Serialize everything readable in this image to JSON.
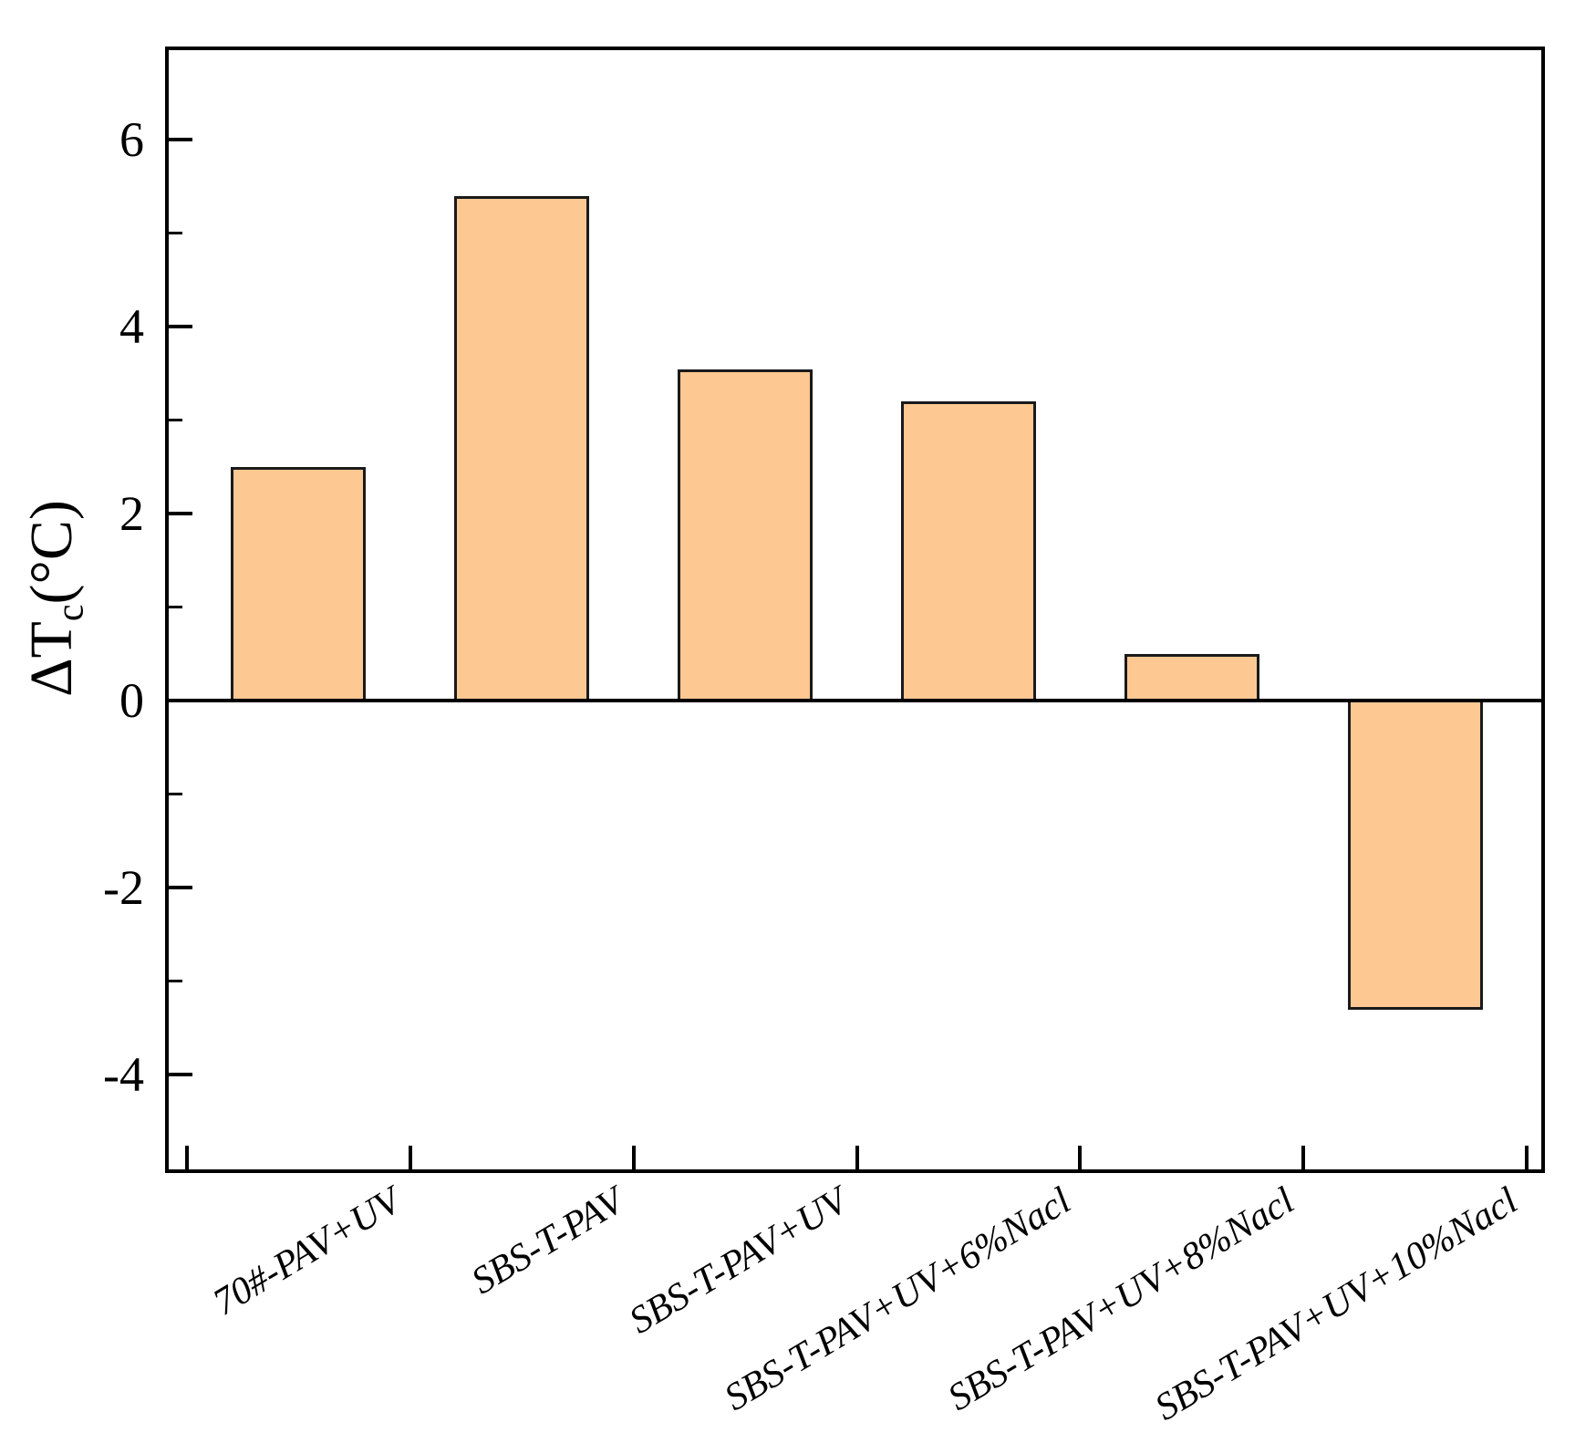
{
  "chart_data": {
    "type": "bar",
    "title": "",
    "xlabel": "",
    "ylabel": "ΔTc(°C)",
    "ylabel_main": "ΔT",
    "ylabel_sub": "c",
    "ylabel_unit": "(°C)",
    "categories": [
      "70#-PAV+UV",
      "SBS-T-PAV",
      "SBS-T-PAV+UV",
      "SBS-T-PAV+UV+6%Nacl",
      "SBS-T-PAV+UV+8%Nacl",
      "SBS-T-PAV+UV+10%Nacl"
    ],
    "values": [
      2.5,
      5.4,
      3.55,
      3.2,
      0.5,
      -3.3
    ],
    "ylim": [
      -5.05,
      7.0
    ],
    "yticks_major": [
      {
        "v": 6,
        "label": "6"
      },
      {
        "v": 4,
        "label": "4"
      },
      {
        "v": 2,
        "label": "2"
      },
      {
        "v": 0,
        "label": "0"
      },
      {
        "v": -2,
        "label": "-2"
      },
      {
        "v": -4,
        "label": "-4"
      }
    ],
    "yticks_minor": [
      5,
      3,
      1,
      -1,
      -3
    ],
    "grid": false,
    "legend": false,
    "x_tick_style": "category-boundaries",
    "x_label_rotation_deg": -31,
    "bar_fill": "#FEC893",
    "bar_edge": "#1A1A1A",
    "axis_color": "#000000",
    "background": "#FFFFFF"
  }
}
